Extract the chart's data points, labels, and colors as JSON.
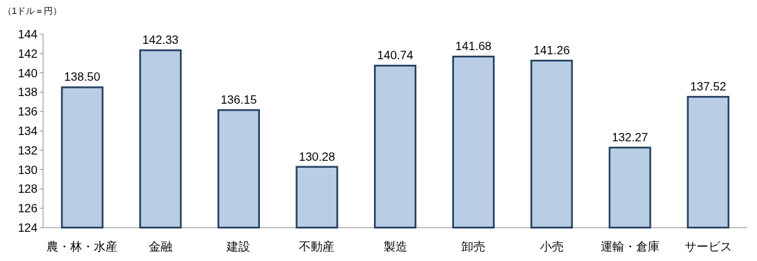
{
  "chart_data": {
    "type": "bar",
    "ylabel": "（1ドル＝円）",
    "categories": [
      "農・林・水産",
      "金融",
      "建設",
      "不動産",
      "製造",
      "卸売",
      "小売",
      "運輸・倉庫",
      "サービス"
    ],
    "values": [
      138.5,
      142.33,
      136.15,
      130.28,
      140.74,
      141.68,
      141.26,
      132.27,
      137.52
    ],
    "value_labels": [
      "138.50",
      "142.33",
      "136.15",
      "130.28",
      "140.74",
      "141.68",
      "141.26",
      "132.27",
      "137.52"
    ],
    "color": "#b9cde5",
    "ylim": [
      124,
      144
    ],
    "yticks": [
      124,
      126,
      128,
      130,
      132,
      134,
      136,
      138,
      140,
      142,
      144
    ],
    "grid": false
  }
}
